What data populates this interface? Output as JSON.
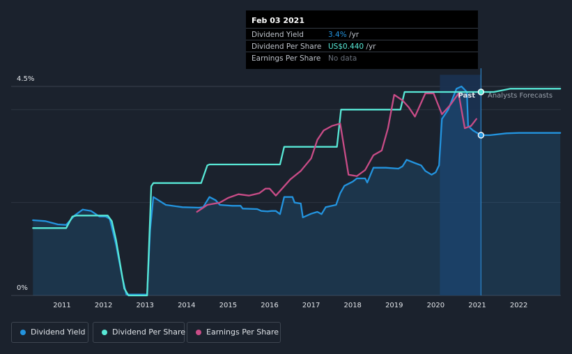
{
  "chart_data": {
    "type": "line",
    "x_range": [
      2010.0,
      2023.0
    ],
    "y_axis": {
      "ticks": [
        "0%",
        "4.5%"
      ],
      "ylim_percent": [
        0,
        4.5
      ]
    },
    "x_ticks": [
      "2011",
      "2012",
      "2013",
      "2014",
      "2015",
      "2016",
      "2017",
      "2018",
      "2019",
      "2020",
      "2021",
      "2022"
    ],
    "grid": true,
    "legend_placement": "bottom-left",
    "region_labels": {
      "past": "Past",
      "forecast": "Analysts Forecasts"
    },
    "highlight_date": 2021.09,
    "series": [
      {
        "name": "Dividend Yield",
        "color": "#2394df",
        "points": [
          [
            2010.3,
            1.62
          ],
          [
            2010.6,
            1.6
          ],
          [
            2010.9,
            1.53
          ],
          [
            2011.1,
            1.52
          ],
          [
            2011.3,
            1.72
          ],
          [
            2011.5,
            1.85
          ],
          [
            2011.7,
            1.82
          ],
          [
            2011.9,
            1.7
          ],
          [
            2012.05,
            1.7
          ],
          [
            2012.15,
            1.65
          ],
          [
            2012.3,
            1.1
          ],
          [
            2012.45,
            0.4
          ],
          [
            2012.55,
            0.02
          ],
          [
            2013.05,
            0.02
          ],
          [
            2013.12,
            1.4
          ],
          [
            2013.2,
            2.12
          ],
          [
            2013.5,
            1.95
          ],
          [
            2013.9,
            1.9
          ],
          [
            2014.3,
            1.89
          ],
          [
            2014.4,
            1.9
          ],
          [
            2014.55,
            2.12
          ],
          [
            2014.7,
            2.05
          ],
          [
            2014.8,
            1.95
          ],
          [
            2015.1,
            1.93
          ],
          [
            2015.3,
            1.93
          ],
          [
            2015.35,
            1.87
          ],
          [
            2015.7,
            1.86
          ],
          [
            2015.8,
            1.82
          ],
          [
            2015.95,
            1.81
          ],
          [
            2016.05,
            1.82
          ],
          [
            2016.15,
            1.82
          ],
          [
            2016.25,
            1.75
          ],
          [
            2016.35,
            2.12
          ],
          [
            2016.55,
            2.12
          ],
          [
            2016.6,
            2.0
          ],
          [
            2016.75,
            1.98
          ],
          [
            2016.8,
            1.68
          ],
          [
            2017.0,
            1.76
          ],
          [
            2017.15,
            1.8
          ],
          [
            2017.25,
            1.75
          ],
          [
            2017.35,
            1.9
          ],
          [
            2017.6,
            1.95
          ],
          [
            2017.7,
            2.2
          ],
          [
            2017.8,
            2.36
          ],
          [
            2018.0,
            2.45
          ],
          [
            2018.1,
            2.52
          ],
          [
            2018.3,
            2.52
          ],
          [
            2018.35,
            2.43
          ],
          [
            2018.5,
            2.75
          ],
          [
            2018.8,
            2.75
          ],
          [
            2019.1,
            2.73
          ],
          [
            2019.2,
            2.78
          ],
          [
            2019.3,
            2.92
          ],
          [
            2019.5,
            2.85
          ],
          [
            2019.65,
            2.8
          ],
          [
            2019.75,
            2.68
          ],
          [
            2019.9,
            2.6
          ],
          [
            2020.0,
            2.65
          ],
          [
            2020.08,
            2.8
          ],
          [
            2020.15,
            3.8
          ],
          [
            2020.3,
            4.0
          ],
          [
            2020.5,
            4.45
          ],
          [
            2020.62,
            4.5
          ],
          [
            2020.75,
            4.38
          ],
          [
            2020.78,
            3.65
          ],
          [
            2020.9,
            3.55
          ],
          [
            2021.09,
            3.45
          ],
          [
            2021.3,
            3.45
          ],
          [
            2021.7,
            3.49
          ],
          [
            2022.0,
            3.5
          ],
          [
            2023.0,
            3.5
          ]
        ]
      },
      {
        "name": "Dividend Per Share",
        "color": "#58e8d6",
        "points": [
          [
            2010.3,
            1.45
          ],
          [
            2011.1,
            1.45
          ],
          [
            2011.25,
            1.7
          ],
          [
            2011.35,
            1.72
          ],
          [
            2012.1,
            1.72
          ],
          [
            2012.2,
            1.6
          ],
          [
            2012.3,
            1.2
          ],
          [
            2012.5,
            0.15
          ],
          [
            2012.6,
            0.0
          ],
          [
            2013.05,
            0.0
          ],
          [
            2013.15,
            2.35
          ],
          [
            2013.2,
            2.42
          ],
          [
            2014.35,
            2.42
          ],
          [
            2014.5,
            2.8
          ],
          [
            2014.55,
            2.82
          ],
          [
            2016.25,
            2.82
          ],
          [
            2016.35,
            3.2
          ],
          [
            2017.62,
            3.2
          ],
          [
            2017.72,
            4.0
          ],
          [
            2019.15,
            4.0
          ],
          [
            2019.25,
            4.38
          ],
          [
            2020.6,
            4.38
          ],
          [
            2021.09,
            4.38
          ],
          [
            2021.4,
            4.38
          ],
          [
            2021.8,
            4.45
          ],
          [
            2023.0,
            4.45
          ]
        ]
      },
      {
        "name": "Earnings Per Share",
        "color": "#c94c87",
        "points": [
          [
            2014.25,
            1.8
          ],
          [
            2014.5,
            1.95
          ],
          [
            2014.8,
            2.0
          ],
          [
            2015.0,
            2.1
          ],
          [
            2015.25,
            2.18
          ],
          [
            2015.5,
            2.15
          ],
          [
            2015.75,
            2.2
          ],
          [
            2015.9,
            2.3
          ],
          [
            2016.0,
            2.3
          ],
          [
            2016.15,
            2.15
          ],
          [
            2016.3,
            2.3
          ],
          [
            2016.5,
            2.5
          ],
          [
            2016.75,
            2.68
          ],
          [
            2017.0,
            2.95
          ],
          [
            2017.15,
            3.35
          ],
          [
            2017.3,
            3.55
          ],
          [
            2017.5,
            3.65
          ],
          [
            2017.7,
            3.7
          ],
          [
            2017.9,
            2.6
          ],
          [
            2018.1,
            2.57
          ],
          [
            2018.3,
            2.7
          ],
          [
            2018.5,
            3.02
          ],
          [
            2018.7,
            3.12
          ],
          [
            2018.85,
            3.6
          ],
          [
            2019.0,
            4.32
          ],
          [
            2019.2,
            4.2
          ],
          [
            2019.35,
            4.05
          ],
          [
            2019.5,
            3.85
          ],
          [
            2019.75,
            4.35
          ],
          [
            2019.95,
            4.35
          ],
          [
            2020.15,
            3.9
          ],
          [
            2020.35,
            4.1
          ],
          [
            2020.55,
            4.35
          ],
          [
            2020.7,
            3.6
          ],
          [
            2020.85,
            3.65
          ],
          [
            2020.98,
            3.8
          ]
        ]
      }
    ]
  },
  "tooltip": {
    "date": "Feb 03 2021",
    "rows": [
      {
        "label": "Dividend Yield",
        "value": "3.4%",
        "unit": " /yr",
        "color": "#2394df"
      },
      {
        "label": "Dividend Per Share",
        "value": "US$0.440",
        "unit": " /yr",
        "color": "#58e8d6"
      },
      {
        "label": "Earnings Per Share",
        "value": "No data",
        "unit": "",
        "color": "#6b727d"
      }
    ]
  },
  "legend": {
    "items": [
      {
        "label": "Dividend Yield",
        "color": "#2394df"
      },
      {
        "label": "Dividend Per Share",
        "color": "#58e8d6"
      },
      {
        "label": "Earnings Per Share",
        "color": "#c94c87"
      }
    ]
  },
  "colors": {
    "background": "#1b222d",
    "gridline": "#2d3440",
    "forecast_band": "#1d3552",
    "divider": "#2f86c8"
  }
}
